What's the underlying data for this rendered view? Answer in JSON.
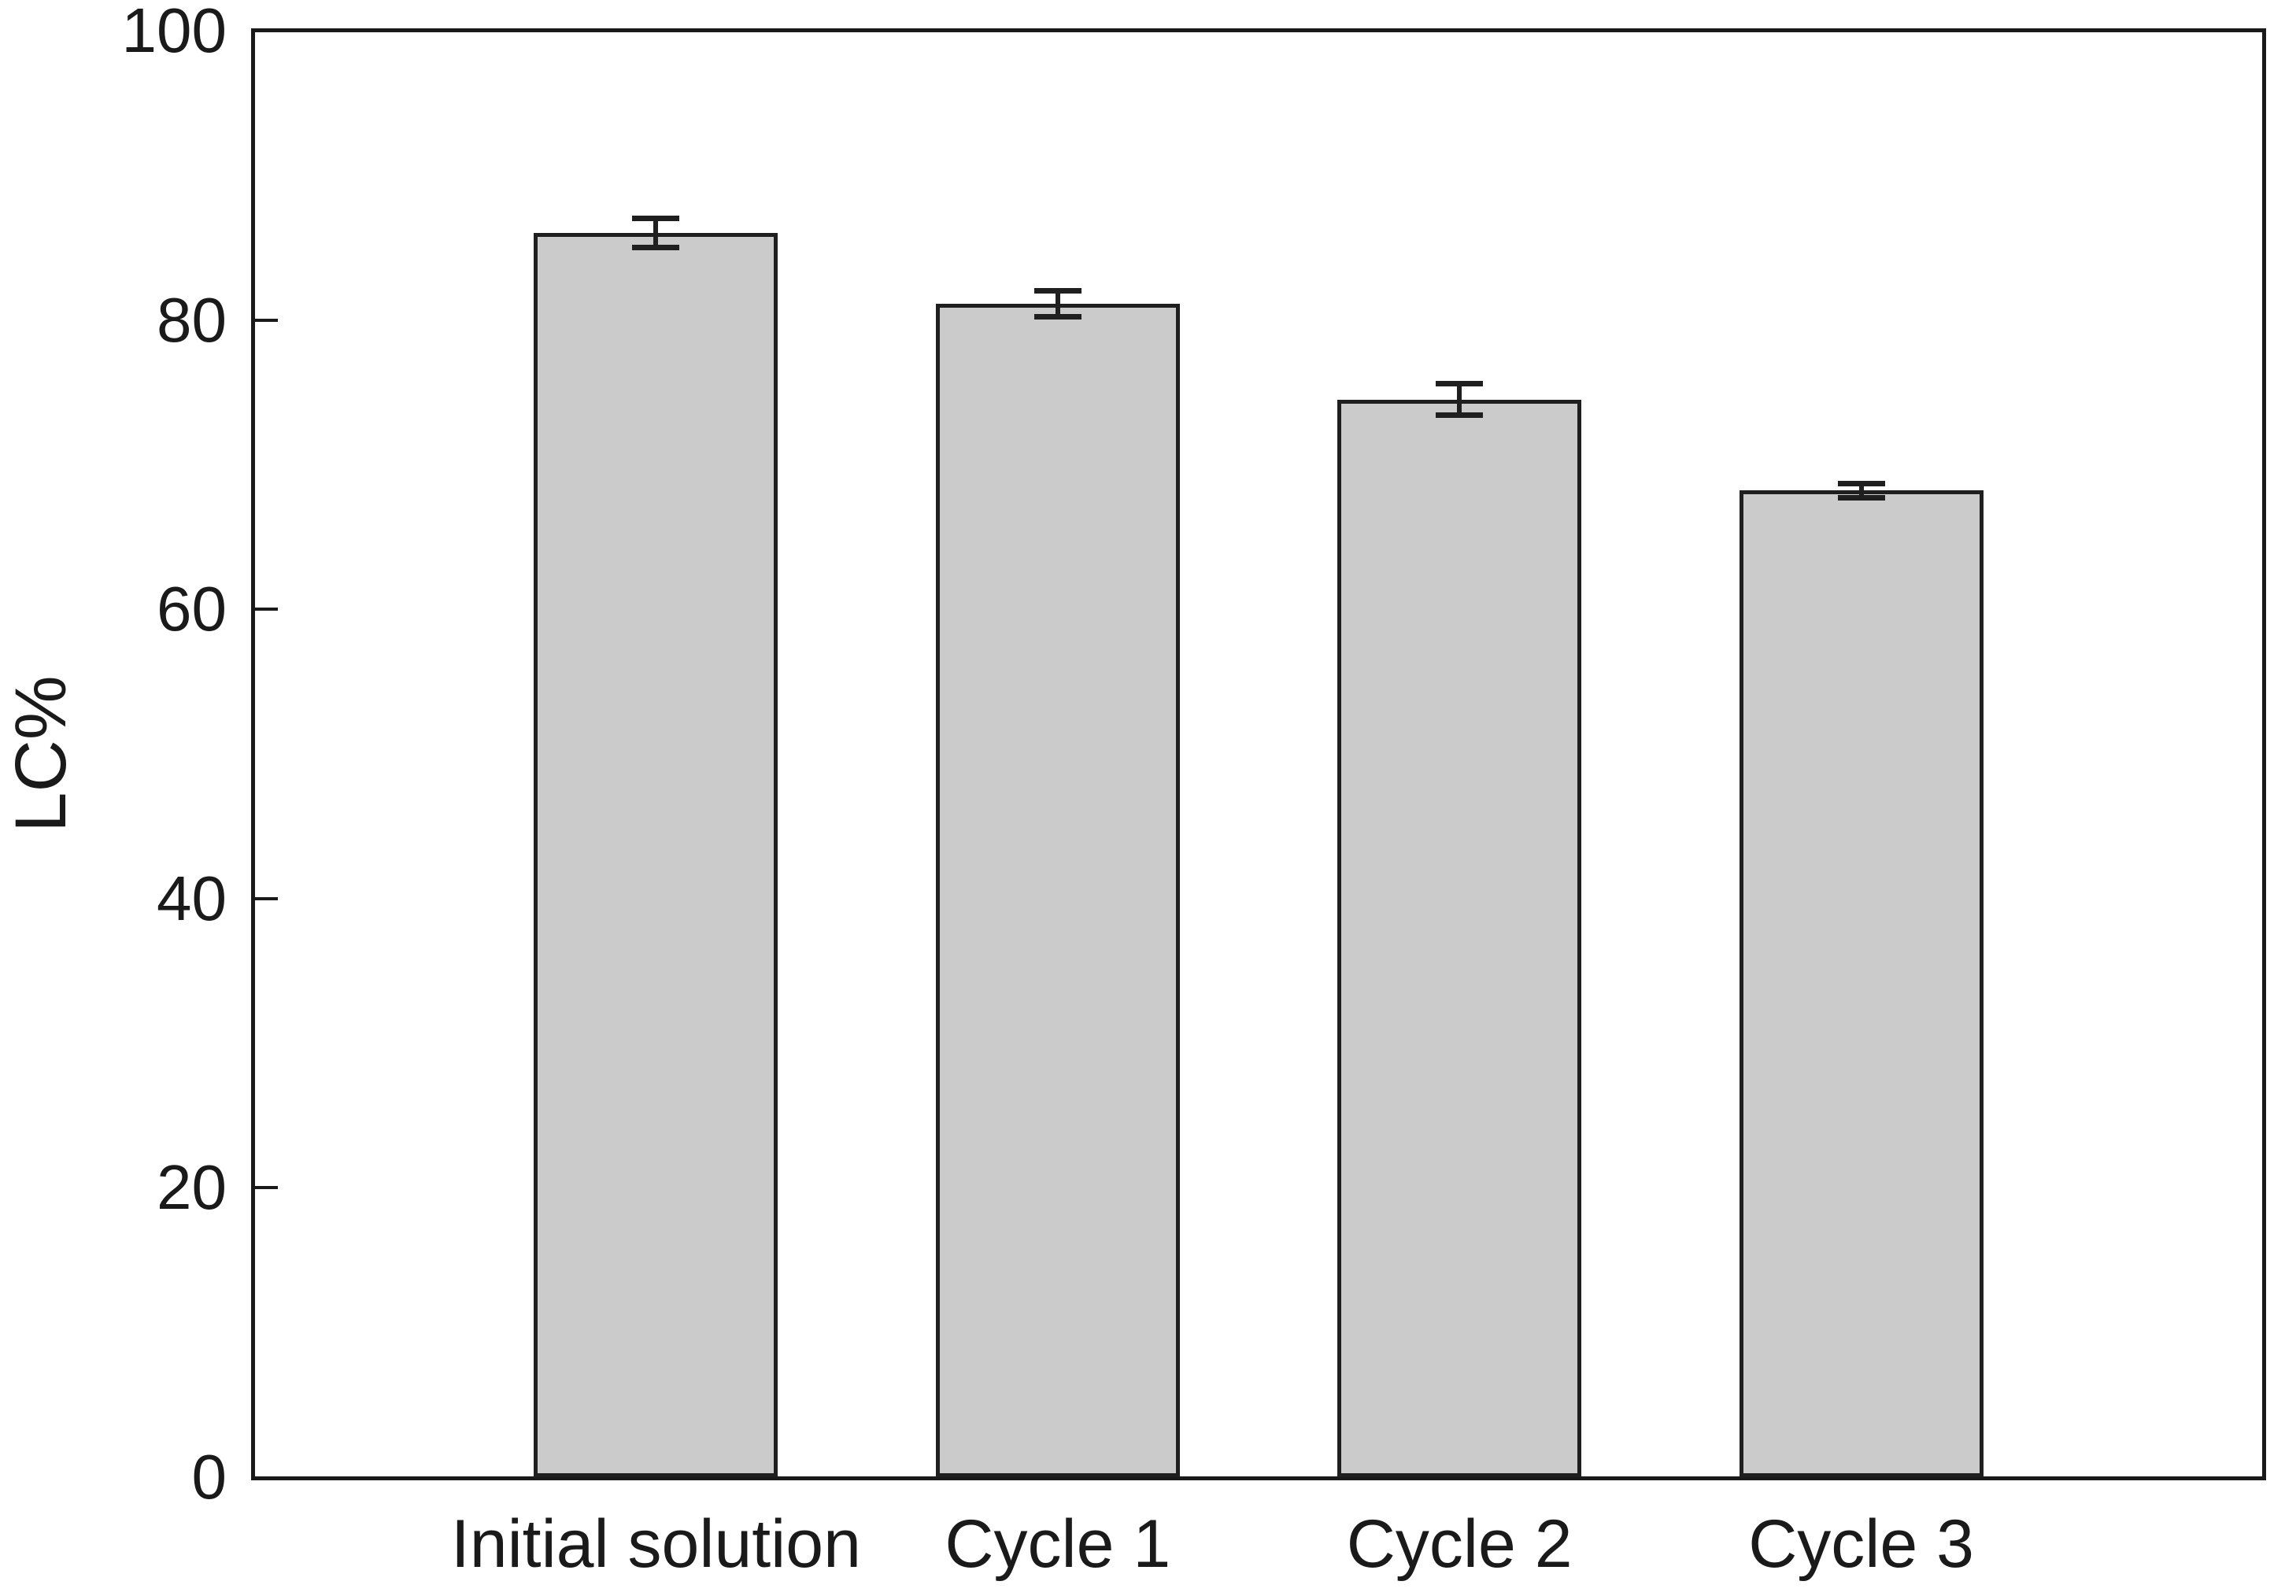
{
  "chart_data": {
    "type": "bar",
    "title": "",
    "xlabel": "",
    "ylabel": "LC%",
    "categories": [
      "Initial solution",
      "Cycle 1",
      "Cycle 2",
      "Cycle 3"
    ],
    "values": [
      86.0,
      81.1,
      74.5,
      68.2
    ],
    "errors": [
      1.0,
      0.9,
      1.1,
      0.5
    ],
    "ylim": [
      0,
      100
    ],
    "yticks": [
      0,
      20,
      40,
      60,
      80,
      100
    ],
    "grid": false,
    "legend": false,
    "colors": {
      "bar_fill": "#cbcbcb",
      "bar_edge": "#1f1f1f",
      "axis": "#1a1a1a",
      "text": "#1a1a1a",
      "background": "#ffffff"
    }
  }
}
